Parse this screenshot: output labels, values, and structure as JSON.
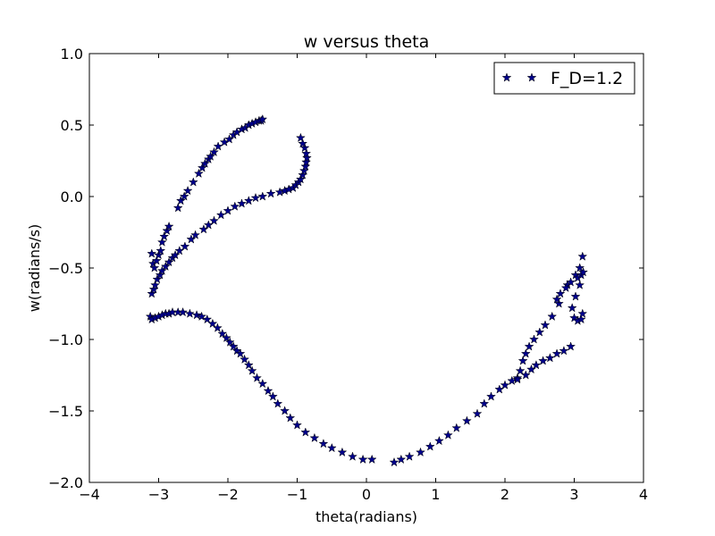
{
  "chart_data": {
    "type": "scatter",
    "title": "w versus theta",
    "xlabel": "theta(radians)",
    "ylabel": "w(radians/s)",
    "xlim": [
      -4,
      4
    ],
    "ylim": [
      -2.0,
      1.0
    ],
    "xticks": [
      -4,
      -3,
      -2,
      -1,
      0,
      1,
      2,
      3,
      4
    ],
    "xtick_labels": [
      "−4",
      "−3",
      "−2",
      "−1",
      "0",
      "1",
      "2",
      "3",
      "4"
    ],
    "yticks": [
      -2.0,
      -1.5,
      -1.0,
      -0.5,
      0.0,
      0.5,
      1.0
    ],
    "ytick_labels": [
      "−2.0",
      "−1.5",
      "−1.0",
      "−0.5",
      "0.0",
      "0.5",
      "1.0"
    ],
    "grid": false,
    "legend": {
      "position": "top-right",
      "entries": [
        "F_D=1.2"
      ]
    },
    "marker_color": "#00008b",
    "marker_edge_color": "#000000",
    "series": [
      {
        "name": "F_D=1.2",
        "marker": "star",
        "points": [
          [
            -3.1,
            -0.4
          ],
          [
            -3.08,
            -0.47
          ],
          [
            -3.06,
            -0.5
          ],
          [
            -3.03,
            -0.45
          ],
          [
            -3.0,
            -0.41
          ],
          [
            -2.97,
            -0.38
          ],
          [
            -2.95,
            -0.32
          ],
          [
            -2.92,
            -0.28
          ],
          [
            -2.88,
            -0.24
          ],
          [
            -2.85,
            -0.21
          ],
          [
            -2.72,
            -0.08
          ],
          [
            -2.68,
            -0.03
          ],
          [
            -2.63,
            0.0
          ],
          [
            -2.58,
            0.04
          ],
          [
            -2.5,
            0.1
          ],
          [
            -2.42,
            0.16
          ],
          [
            -2.37,
            0.2
          ],
          [
            -2.33,
            0.23
          ],
          [
            -2.28,
            0.26
          ],
          [
            -2.25,
            0.28
          ],
          [
            -2.2,
            0.31
          ],
          [
            -2.14,
            0.35
          ],
          [
            -2.05,
            0.38
          ],
          [
            -1.98,
            0.4
          ],
          [
            -1.92,
            0.43
          ],
          [
            -1.87,
            0.45
          ],
          [
            -1.8,
            0.47
          ],
          [
            -1.75,
            0.48
          ],
          [
            -1.7,
            0.5
          ],
          [
            -1.65,
            0.51
          ],
          [
            -1.6,
            0.52
          ],
          [
            -1.55,
            0.53
          ],
          [
            -1.52,
            0.53
          ],
          [
            -1.5,
            0.54
          ],
          [
            -3.1,
            -0.68
          ],
          [
            -3.07,
            -0.65
          ],
          [
            -3.05,
            -0.62
          ],
          [
            -3.02,
            -0.58
          ],
          [
            -2.98,
            -0.55
          ],
          [
            -2.95,
            -0.52
          ],
          [
            -2.9,
            -0.49
          ],
          [
            -2.85,
            -0.46
          ],
          [
            -2.8,
            -0.43
          ],
          [
            -2.76,
            -0.41
          ],
          [
            -2.7,
            -0.38
          ],
          [
            -2.62,
            -0.35
          ],
          [
            -2.53,
            -0.3
          ],
          [
            -2.47,
            -0.27
          ],
          [
            -2.35,
            -0.23
          ],
          [
            -2.28,
            -0.2
          ],
          [
            -2.2,
            -0.17
          ],
          [
            -2.1,
            -0.13
          ],
          [
            -2.0,
            -0.1
          ],
          [
            -1.9,
            -0.07
          ],
          [
            -1.8,
            -0.05
          ],
          [
            -1.7,
            -0.03
          ],
          [
            -1.6,
            -0.01
          ],
          [
            -1.5,
            0.0
          ],
          [
            -1.38,
            0.02
          ],
          [
            -1.25,
            0.03
          ],
          [
            -1.18,
            0.04
          ],
          [
            -1.12,
            0.05
          ],
          [
            -1.06,
            0.06
          ],
          [
            -1.02,
            0.08
          ],
          [
            -0.98,
            0.1
          ],
          [
            -0.95,
            0.12
          ],
          [
            -0.92,
            0.15
          ],
          [
            -0.9,
            0.18
          ],
          [
            -0.88,
            0.21
          ],
          [
            -0.87,
            0.24
          ],
          [
            -0.86,
            0.27
          ],
          [
            -0.87,
            0.3
          ],
          [
            -0.89,
            0.34
          ],
          [
            -0.92,
            0.37
          ],
          [
            -0.95,
            0.41
          ],
          [
            -3.12,
            -0.84
          ],
          [
            -3.1,
            -0.86
          ],
          [
            -3.05,
            -0.85
          ],
          [
            -3.0,
            -0.84
          ],
          [
            -2.95,
            -0.83
          ],
          [
            -2.9,
            -0.82
          ],
          [
            -2.85,
            -0.82
          ],
          [
            -2.8,
            -0.81
          ],
          [
            -2.72,
            -0.81
          ],
          [
            -2.65,
            -0.81
          ],
          [
            -2.55,
            -0.82
          ],
          [
            -2.45,
            -0.83
          ],
          [
            -2.38,
            -0.84
          ],
          [
            -2.3,
            -0.86
          ],
          [
            -2.22,
            -0.89
          ],
          [
            -2.15,
            -0.92
          ],
          [
            -2.08,
            -0.96
          ],
          [
            -2.02,
            -0.99
          ],
          [
            -1.97,
            -1.02
          ],
          [
            -1.92,
            -1.05
          ],
          [
            -1.87,
            -1.08
          ],
          [
            -1.82,
            -1.1
          ],
          [
            -1.76,
            -1.14
          ],
          [
            -1.7,
            -1.18
          ],
          [
            -1.65,
            -1.22
          ],
          [
            -1.58,
            -1.27
          ],
          [
            -1.5,
            -1.31
          ],
          [
            -1.42,
            -1.36
          ],
          [
            -1.35,
            -1.4
          ],
          [
            -1.28,
            -1.45
          ],
          [
            -1.18,
            -1.5
          ],
          [
            -1.1,
            -1.55
          ],
          [
            -1.0,
            -1.6
          ],
          [
            -0.88,
            -1.65
          ],
          [
            -0.75,
            -1.69
          ],
          [
            -0.62,
            -1.73
          ],
          [
            -0.5,
            -1.76
          ],
          [
            -0.35,
            -1.79
          ],
          [
            -0.2,
            -1.82
          ],
          [
            -0.05,
            -1.84
          ],
          [
            0.08,
            -1.84
          ],
          [
            0.4,
            -1.86
          ],
          [
            0.5,
            -1.84
          ],
          [
            0.62,
            -1.82
          ],
          [
            0.78,
            -1.79
          ],
          [
            0.92,
            -1.75
          ],
          [
            1.05,
            -1.71
          ],
          [
            1.18,
            -1.67
          ],
          [
            1.3,
            -1.62
          ],
          [
            1.45,
            -1.57
          ],
          [
            1.6,
            -1.52
          ],
          [
            1.7,
            -1.45
          ],
          [
            1.8,
            -1.4
          ],
          [
            1.92,
            -1.35
          ],
          [
            2.0,
            -1.32
          ],
          [
            2.1,
            -1.29
          ],
          [
            2.18,
            -1.27
          ],
          [
            2.3,
            -1.25
          ],
          [
            2.38,
            -1.21
          ],
          [
            2.45,
            -1.18
          ],
          [
            2.55,
            -1.15
          ],
          [
            2.65,
            -1.13
          ],
          [
            2.75,
            -1.1
          ],
          [
            2.85,
            -1.08
          ],
          [
            2.95,
            -1.05
          ],
          [
            2.18,
            -1.28
          ],
          [
            2.22,
            -1.22
          ],
          [
            2.26,
            -1.15
          ],
          [
            2.3,
            -1.1
          ],
          [
            2.35,
            -1.05
          ],
          [
            2.42,
            -1.0
          ],
          [
            2.5,
            -0.95
          ],
          [
            2.58,
            -0.9
          ],
          [
            2.68,
            -0.84
          ],
          [
            2.78,
            -0.75
          ],
          [
            2.9,
            -0.62
          ],
          [
            3.02,
            -0.55
          ],
          [
            3.08,
            -0.5
          ],
          [
            3.12,
            -0.42
          ],
          [
            2.75,
            -0.72
          ],
          [
            2.8,
            -0.68
          ],
          [
            2.88,
            -0.64
          ],
          [
            2.95,
            -0.6
          ],
          [
            3.05,
            -0.57
          ],
          [
            3.1,
            -0.55
          ],
          [
            3.13,
            -0.53
          ],
          [
            3.08,
            -0.62
          ],
          [
            3.02,
            -0.7
          ],
          [
            2.97,
            -0.78
          ],
          [
            3.0,
            -0.85
          ],
          [
            3.05,
            -0.87
          ],
          [
            3.1,
            -0.86
          ],
          [
            3.12,
            -0.82
          ]
        ]
      }
    ]
  }
}
